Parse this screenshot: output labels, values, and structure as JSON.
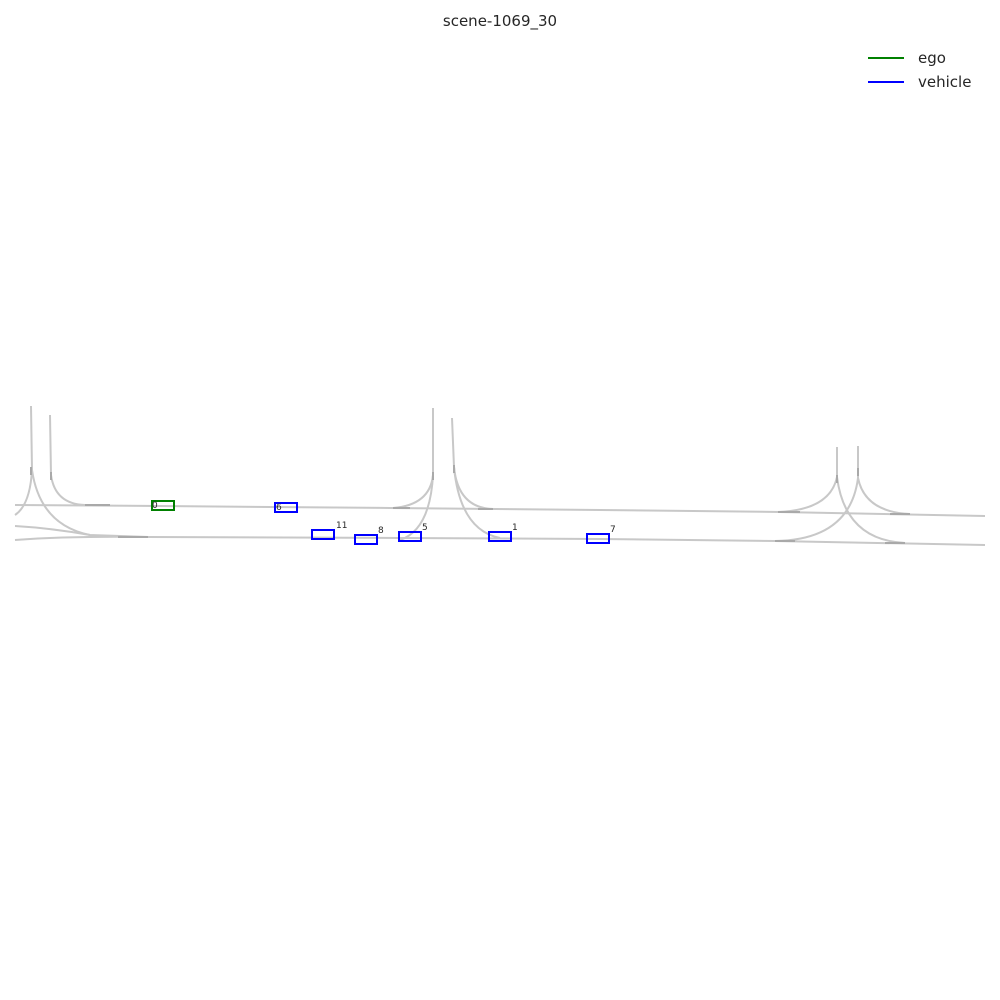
{
  "title": "scene-1069_30",
  "legend": [
    {
      "label": "ego",
      "color": "#008000"
    },
    {
      "label": "vehicle",
      "color": "#0000ff"
    }
  ],
  "agents": [
    {
      "id": "0",
      "type": "ego",
      "color": "#008000"
    },
    {
      "id": "6",
      "type": "vehicle",
      "color": "#0000ff"
    },
    {
      "id": "11",
      "type": "vehicle",
      "color": "#0000ff"
    },
    {
      "id": "8",
      "type": "vehicle",
      "color": "#0000ff"
    },
    {
      "id": "5",
      "type": "vehicle",
      "color": "#0000ff"
    },
    {
      "id": "1",
      "type": "vehicle",
      "color": "#0000ff"
    },
    {
      "id": "7",
      "type": "vehicle",
      "color": "#0000ff"
    }
  ]
}
